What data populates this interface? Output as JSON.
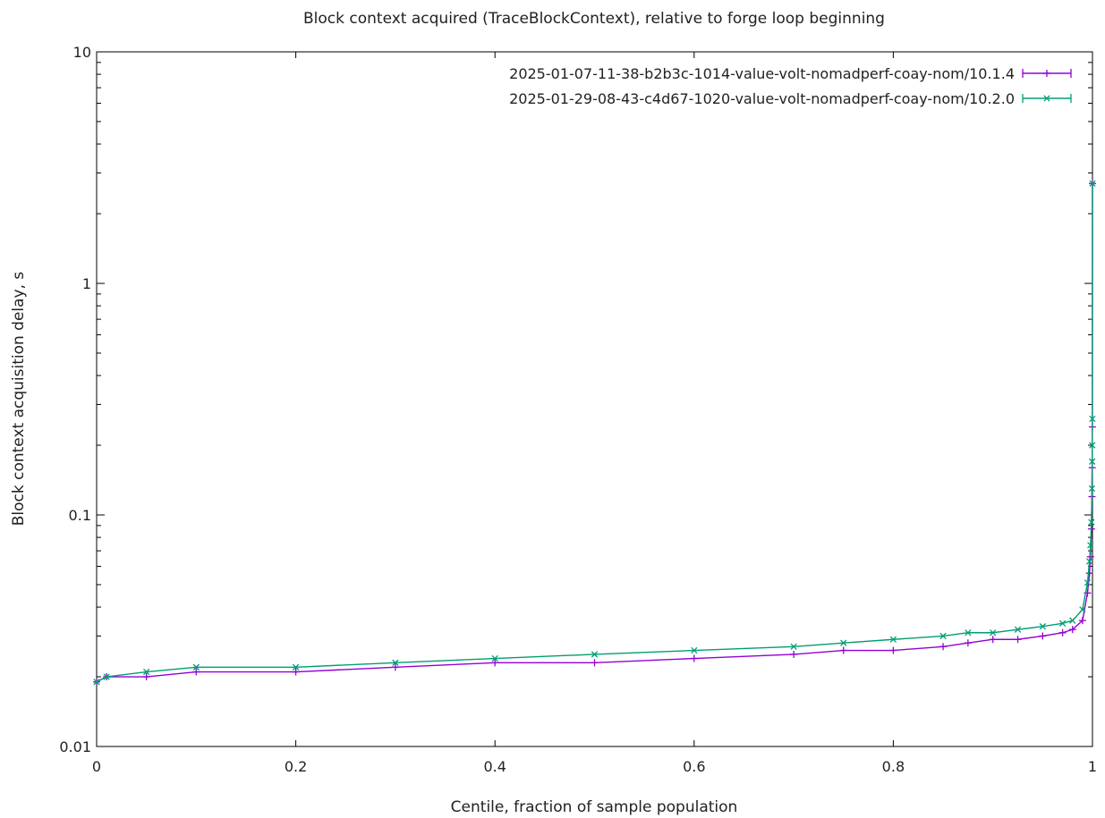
{
  "chart_data": {
    "type": "line",
    "title": "Block context acquired (TraceBlockContext), relative to forge loop beginning",
    "xlabel": "Centile, fraction of sample population",
    "ylabel": "Block context acquisition delay, s",
    "xlim": [
      0,
      1
    ],
    "ylim": [
      0.01,
      10
    ],
    "yscale": "log",
    "grid": false,
    "legend_position": "top-right",
    "x_ticks": [
      "0",
      "0.2",
      "0.4",
      "0.6",
      "0.8",
      "1"
    ],
    "y_ticks": [
      "0.01",
      "0.1",
      "1",
      "10"
    ],
    "series": [
      {
        "name": "2025-01-07-11-38-b2b3c-1014-value-volt-nomadperf-coay-nom/10.1.4",
        "color": "#9400d3",
        "marker": "plus",
        "points": [
          [
            0.0,
            0.019
          ],
          [
            0.01,
            0.02
          ],
          [
            0.05,
            0.02
          ],
          [
            0.1,
            0.021
          ],
          [
            0.2,
            0.021
          ],
          [
            0.3,
            0.022
          ],
          [
            0.4,
            0.023
          ],
          [
            0.5,
            0.023
          ],
          [
            0.6,
            0.024
          ],
          [
            0.7,
            0.025
          ],
          [
            0.75,
            0.026
          ],
          [
            0.8,
            0.026
          ],
          [
            0.85,
            0.027
          ],
          [
            0.875,
            0.028
          ],
          [
            0.9,
            0.029
          ],
          [
            0.925,
            0.029
          ],
          [
            0.95,
            0.03
          ],
          [
            0.97,
            0.031
          ],
          [
            0.98,
            0.032
          ],
          [
            0.99,
            0.035
          ],
          [
            0.995,
            0.046
          ],
          [
            0.997,
            0.056
          ],
          [
            0.998,
            0.066
          ],
          [
            0.999,
            0.087
          ],
          [
            0.9995,
            0.12
          ],
          [
            0.9997,
            0.16
          ],
          [
            0.9999,
            0.24
          ],
          [
            1.0,
            2.7
          ]
        ]
      },
      {
        "name": "2025-01-29-08-43-c4d67-1020-value-volt-nomadperf-coay-nom/10.2.0",
        "color": "#009e73",
        "marker": "cross",
        "points": [
          [
            0.0,
            0.019
          ],
          [
            0.01,
            0.02
          ],
          [
            0.05,
            0.021
          ],
          [
            0.1,
            0.022
          ],
          [
            0.2,
            0.022
          ],
          [
            0.3,
            0.023
          ],
          [
            0.4,
            0.024
          ],
          [
            0.5,
            0.025
          ],
          [
            0.6,
            0.026
          ],
          [
            0.7,
            0.027
          ],
          [
            0.75,
            0.028
          ],
          [
            0.8,
            0.029
          ],
          [
            0.85,
            0.03
          ],
          [
            0.875,
            0.031
          ],
          [
            0.9,
            0.031
          ],
          [
            0.925,
            0.032
          ],
          [
            0.95,
            0.033
          ],
          [
            0.97,
            0.034
          ],
          [
            0.98,
            0.035
          ],
          [
            0.99,
            0.039
          ],
          [
            0.995,
            0.051
          ],
          [
            0.997,
            0.063
          ],
          [
            0.998,
            0.074
          ],
          [
            0.999,
            0.093
          ],
          [
            0.9995,
            0.13
          ],
          [
            0.9997,
            0.17
          ],
          [
            0.9998,
            0.2
          ],
          [
            0.9999,
            0.26
          ],
          [
            1.0,
            2.7
          ]
        ]
      }
    ]
  }
}
